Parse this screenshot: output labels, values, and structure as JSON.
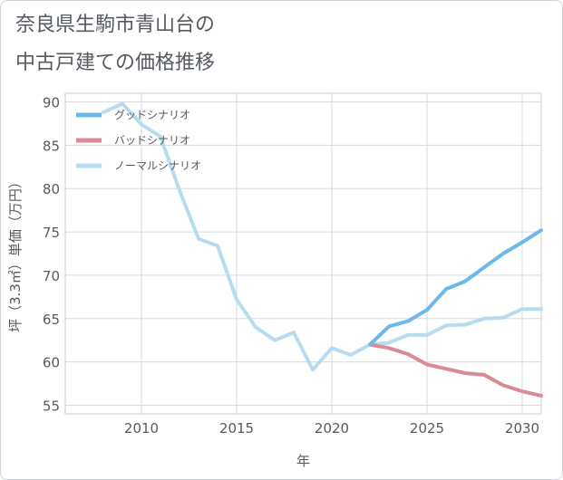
{
  "title_lines": [
    "奈良県生駒市青山台の",
    "中古戸建ての価格推移"
  ],
  "chart_data": {
    "type": "line",
    "xlabel": "年",
    "ylabel": "坪（3.3㎡）単価（万円）",
    "xlim": [
      2006,
      2031
    ],
    "ylim": [
      54,
      91
    ],
    "xticks": [
      2010,
      2015,
      2020,
      2025,
      2030
    ],
    "yticks": [
      55,
      60,
      65,
      70,
      75,
      80,
      85,
      90
    ],
    "grid": true,
    "legend_position": "top-left",
    "series": [
      {
        "name": "グッドシナリオ",
        "color": "#6cb8ea",
        "x": [
          2022,
          2023,
          2024,
          2025,
          2026,
          2027,
          2028,
          2029,
          2030,
          2031
        ],
        "y": [
          62.0,
          64.1,
          64.7,
          66.0,
          68.4,
          69.3,
          70.9,
          72.5,
          73.8,
          75.2
        ]
      },
      {
        "name": "バッドシナリオ",
        "color": "#d98a92",
        "x": [
          2022,
          2023,
          2024,
          2025,
          2026,
          2027,
          2028,
          2029,
          2030,
          2031
        ],
        "y": [
          62.0,
          61.6,
          60.9,
          59.7,
          59.2,
          58.7,
          58.5,
          57.3,
          56.6,
          56.1
        ]
      },
      {
        "name": "ノーマルシナリオ",
        "color": "#b8dcef",
        "x": [
          2008,
          2009,
          2010,
          2011,
          2012,
          2013,
          2014,
          2015,
          2016,
          2017,
          2018,
          2019,
          2020,
          2021,
          2022,
          2023,
          2024,
          2025,
          2026,
          2027,
          2028,
          2029,
          2030,
          2031
        ],
        "y": [
          88.8,
          89.8,
          87.4,
          86.0,
          79.8,
          74.2,
          73.4,
          67.2,
          64.0,
          62.5,
          63.4,
          59.1,
          61.6,
          60.8,
          62.0,
          62.2,
          63.1,
          63.1,
          64.2,
          64.3,
          65.0,
          65.1,
          66.1,
          66.1
        ]
      }
    ]
  }
}
